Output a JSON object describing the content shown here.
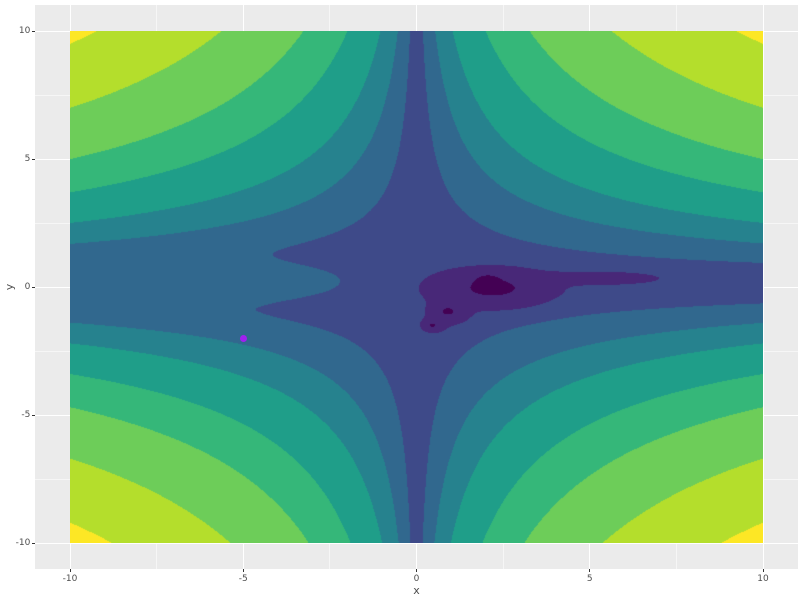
{
  "figure": {
    "background": "#FFFFFF",
    "panel_background": "#EBEBEB",
    "grid_color": "#FFFFFF",
    "tick_color": "#333333",
    "text_color": "#4D4D4D"
  },
  "axes": {
    "x": {
      "title": "x",
      "range": [
        -11,
        11
      ],
      "major_ticks": [
        -10,
        -5,
        0,
        5,
        10
      ],
      "labels": [
        "-10",
        "-5",
        "0",
        "5",
        "10"
      ],
      "minor_ticks": [
        -7.5,
        -2.5,
        2.5,
        7.5
      ]
    },
    "y": {
      "title": "y",
      "range": [
        -11,
        11
      ],
      "major_ticks": [
        -10,
        -5,
        0,
        5,
        10
      ],
      "labels": [
        "-10",
        "-5",
        "0",
        "5",
        "10"
      ],
      "minor_ticks": [
        -7.5,
        -2.5,
        2.5,
        7.5
      ]
    }
  },
  "chart_data": {
    "type": "filled-contour",
    "x_domain": [
      -10,
      10
    ],
    "y_domain": [
      -10,
      10
    ],
    "grid": true,
    "legend": "none",
    "palette_dark_to_light": [
      "#440154",
      "#482878",
      "#3E4A89",
      "#31688E",
      "#26828E",
      "#1F9E89",
      "#35B779",
      "#6DCD59",
      "#B4DE2C",
      "#FDE725"
    ],
    "level_breaks": [
      -60,
      -6,
      6.9,
      20,
      38.6,
      74,
      121,
      209,
      342
    ],
    "surface_model": {
      "description": "approximation of depicted surface read from pixels: valley cross along both axes (asymmetric), deepest basin near (2,0.25) with small pits at (0.9,-0.95) and (0.45,-1.5), thin deep tail toward (7,0.35), bright hyperbolic corners",
      "exponent": 1.58,
      "y_offset": 0.15,
      "lift": {
        "amp": 14,
        "x_scale": 4.5,
        "y_center": 0.2,
        "y_sigma": 0.55
      },
      "depressions": [
        {
          "amp": 75,
          "cx": 2.2,
          "sx": 0.95,
          "cy": -0.05,
          "sy": 0.42
        },
        {
          "amp": 40,
          "cx": 0.95,
          "sx": 0.35,
          "cy": -1.0,
          "sy": 0.28
        },
        {
          "amp": 30,
          "cx": 0.5,
          "sx": 0.22,
          "cy": -1.5,
          "sy": 0.18
        },
        {
          "amp": 25,
          "cx": 5.2,
          "sx": 1.1,
          "cy": 0.35,
          "sy": 0.16
        },
        {
          "amp": 60,
          "cx": 2.05,
          "sx": 0.2,
          "cy": 0.25,
          "sy": 0.15
        },
        {
          "amp": 45,
          "cx": 0.9,
          "sx": 0.12,
          "cy": -0.95,
          "sy": 0.1
        },
        {
          "amp": 40,
          "cx": 0.45,
          "sx": 0.1,
          "cy": -1.5,
          "sy": 0.08
        }
      ]
    },
    "point": {
      "x": -5,
      "y": -2,
      "color": "#A020F0",
      "radius_px": 3.5
    }
  }
}
